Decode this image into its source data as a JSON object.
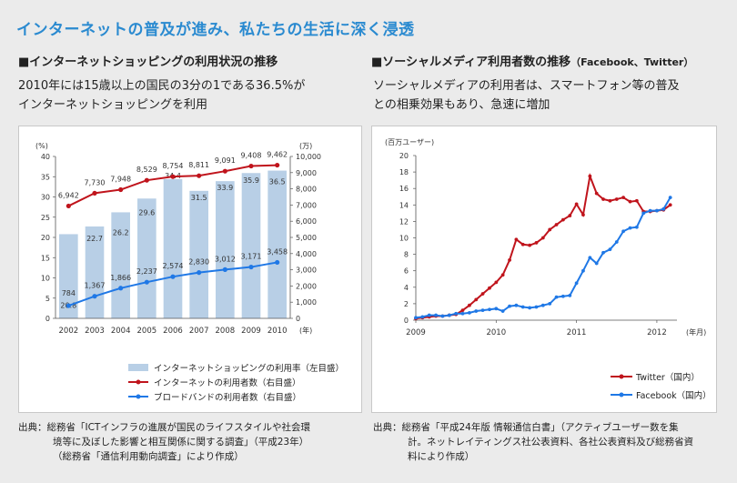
{
  "page_title": "インターネットの普及が進み、私たちの生活に深く浸透",
  "left": {
    "heading": "■インターネットショッピングの利用状況の推移",
    "description": [
      "2010年には15歳以上の国民の3分の1である36.5%が",
      "インターネットショッピングを利用"
    ],
    "source": [
      "出典：総務省「ICTインフラの進展が国民のライフスタイルや社会環",
      "境等に及ぼした影響と相互関係に関する調査」（平成23年）",
      "（総務省「通信利用動向調査」により作成）"
    ]
  },
  "right": {
    "heading": "■ソーシャルメディア利用者数の推移",
    "heading_sub": "（Facebook、Twitter）",
    "description": [
      "ソーシャルメディアの利用者は、スマートフォン等の普及",
      "との相乗効果もあり、急速に増加"
    ],
    "source": [
      "出典：総務省「平成24年版 情報通信白書」（アクティブユーザー数を集",
      "計。ネットレイティングス社公表資料、各社公表資料及び総務省資",
      "料により作成）"
    ]
  },
  "colors": {
    "title": "#2a8ad0",
    "bar": "#b8cfe6",
    "red": "#c0141c",
    "blue": "#1f78e6"
  },
  "chart_data": [
    {
      "type": "bar+line",
      "title": "",
      "xlabel": "(年)",
      "ylabel_left": "(%)",
      "ylabel_right": "(万)",
      "categories": [
        "2002",
        "2003",
        "2004",
        "2005",
        "2006",
        "2007",
        "2008",
        "2009",
        "2010"
      ],
      "ylim_left": [
        0,
        40
      ],
      "yticks_left": [
        0,
        5,
        10,
        15,
        20,
        25,
        30,
        35,
        40
      ],
      "ylim_right": [
        0,
        10000
      ],
      "yticks_right": [
        "0",
        "1,000",
        "2,000",
        "3,000",
        "4,000",
        "5,000",
        "6,000",
        "7,000",
        "8,000",
        "9,000",
        "10,000"
      ],
      "series": [
        {
          "name": "インターネットショッピングの利用率（左目盛）",
          "kind": "bar",
          "axis": "left",
          "values": [
            20.8,
            22.7,
            26.2,
            29.6,
            34.4,
            31.5,
            33.9,
            35.9,
            36.5
          ],
          "labels": [
            "20.8",
            "22.7",
            "26.2",
            "29.6",
            "34.4",
            "31.5",
            "33.9",
            "35.9",
            "36.5"
          ]
        },
        {
          "name": "インターネットの利用者数（右目盛）",
          "kind": "line",
          "axis": "right",
          "color": "#c0141c",
          "values": [
            6942,
            7730,
            7948,
            8529,
            8754,
            8811,
            9091,
            9408,
            9462
          ],
          "labels": [
            "6,942",
            "7,730",
            "7,948",
            "8,529",
            "8,754",
            "8,811",
            "9,091",
            "9,408",
            "9,462"
          ]
        },
        {
          "name": "ブロードバンドの利用者数（右目盛）",
          "kind": "line",
          "axis": "right",
          "color": "#1f78e6",
          "values": [
            784,
            1367,
            1866,
            2237,
            2574,
            2830,
            3012,
            3171,
            3458
          ],
          "labels": [
            "784",
            "1,367",
            "1,866",
            "2,237",
            "2,574",
            "2,830",
            "3,012",
            "3,171",
            "3,458"
          ]
        }
      ]
    },
    {
      "type": "line",
      "title": "",
      "ylabel": "(百万ユーザー)",
      "xlabel": "(年月)",
      "ylim": [
        0,
        20
      ],
      "yticks": [
        0,
        2,
        4,
        6,
        8,
        10,
        12,
        14,
        16,
        18,
        20
      ],
      "xlim": [
        2009.0,
        2012.25
      ],
      "xticks": [
        "2009",
        "2010",
        "2011",
        "2012"
      ],
      "series": [
        {
          "name": "Twitter（国内）",
          "color": "#c0141c",
          "x": [
            2009.0,
            2009.083,
            2009.167,
            2009.25,
            2009.333,
            2009.417,
            2009.5,
            2009.583,
            2009.667,
            2009.75,
            2009.833,
            2009.917,
            2010.0,
            2010.083,
            2010.167,
            2010.25,
            2010.333,
            2010.417,
            2010.5,
            2010.583,
            2010.667,
            2010.75,
            2010.833,
            2010.917,
            2011.0,
            2011.083,
            2011.167,
            2011.25,
            2011.333,
            2011.417,
            2011.5,
            2011.583,
            2011.667,
            2011.75,
            2011.833,
            2011.917,
            2012.0,
            2012.083,
            2012.167
          ],
          "y": [
            0.2,
            0.3,
            0.4,
            0.5,
            0.5,
            0.6,
            0.7,
            1.2,
            1.8,
            2.5,
            3.2,
            3.9,
            4.6,
            5.5,
            7.3,
            9.8,
            9.2,
            9.1,
            9.4,
            10.0,
            11.0,
            11.6,
            12.2,
            12.7,
            14.1,
            12.8,
            17.5,
            15.4,
            14.7,
            14.5,
            14.7,
            14.9,
            14.4,
            14.5,
            13.2,
            13.2,
            13.3,
            13.4,
            14.0
          ]
        },
        {
          "name": "Facebook（国内）",
          "color": "#1f78e6",
          "x": [
            2009.0,
            2009.083,
            2009.167,
            2009.25,
            2009.333,
            2009.417,
            2009.5,
            2009.583,
            2009.667,
            2009.75,
            2009.833,
            2009.917,
            2010.0,
            2010.083,
            2010.167,
            2010.25,
            2010.333,
            2010.417,
            2010.5,
            2010.583,
            2010.667,
            2010.75,
            2010.833,
            2010.917,
            2011.0,
            2011.083,
            2011.167,
            2011.25,
            2011.333,
            2011.417,
            2011.5,
            2011.583,
            2011.667,
            2011.75,
            2011.833,
            2011.917,
            2012.0,
            2012.083,
            2012.167
          ],
          "y": [
            0.3,
            0.4,
            0.6,
            0.6,
            0.5,
            0.6,
            0.8,
            0.8,
            0.9,
            1.1,
            1.2,
            1.3,
            1.4,
            1.1,
            1.7,
            1.8,
            1.6,
            1.5,
            1.6,
            1.8,
            2.0,
            2.8,
            2.9,
            3.0,
            4.5,
            6.0,
            7.6,
            6.9,
            8.2,
            8.6,
            9.5,
            10.8,
            11.2,
            11.3,
            13.0,
            13.3,
            13.3,
            13.5,
            14.9
          ]
        }
      ]
    }
  ]
}
